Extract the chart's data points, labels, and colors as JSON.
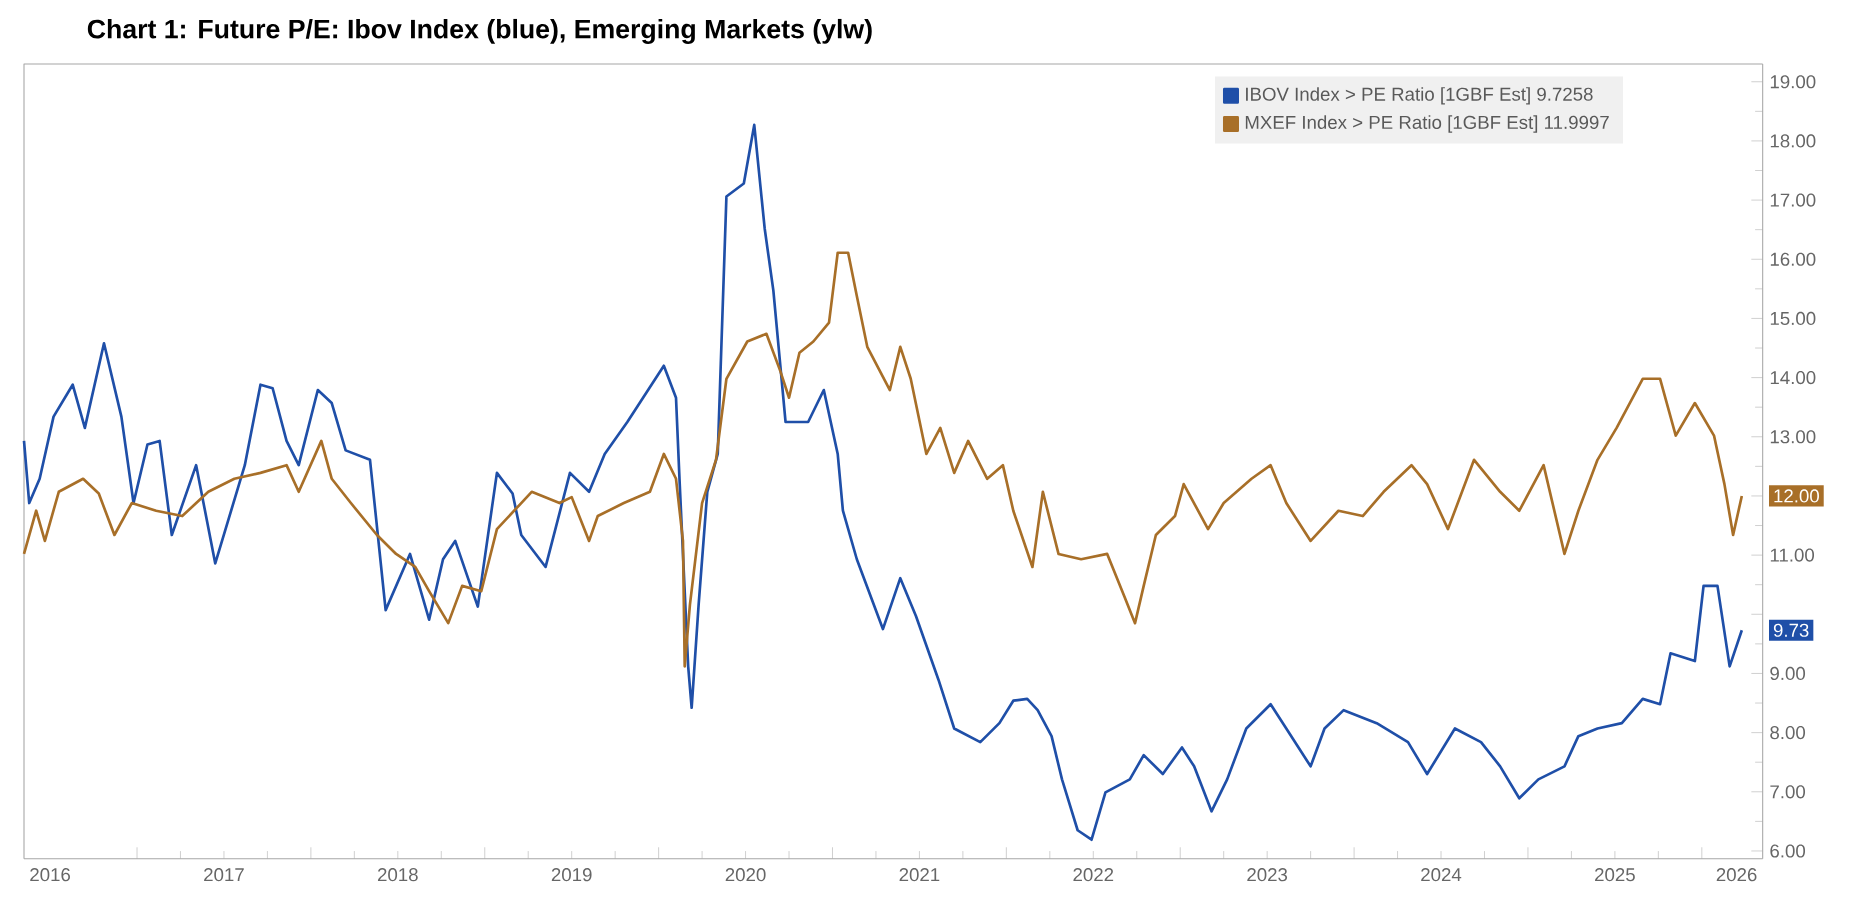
{
  "chart_data": {
    "type": "line",
    "title": "Chart 1: Future P/E: Ibov Index (blue), Emerging Markets (ylw)",
    "xlim": [
      2016.35,
      2026.35
    ],
    "xticks": [
      {
        "value": 2016.5,
        "label": "2016"
      },
      {
        "value": 2017,
        "label": null
      },
      {
        "value": 2017.5,
        "label": "2017"
      },
      {
        "value": 2018,
        "label": null
      },
      {
        "value": 2018.5,
        "label": "2018"
      },
      {
        "value": 2019,
        "label": null
      },
      {
        "value": 2019.5,
        "label": "2019"
      },
      {
        "value": 2020,
        "label": null
      },
      {
        "value": 2020.5,
        "label": "2020"
      },
      {
        "value": 2021,
        "label": null
      },
      {
        "value": 2021.5,
        "label": "2021"
      },
      {
        "value": 2022,
        "label": null
      },
      {
        "value": 2022.5,
        "label": "2022"
      },
      {
        "value": 2023,
        "label": null
      },
      {
        "value": 2023.5,
        "label": "2023"
      },
      {
        "value": 2024,
        "label": null
      },
      {
        "value": 2024.5,
        "label": "2024"
      },
      {
        "value": 2025,
        "label": null
      },
      {
        "value": 2025.5,
        "label": "2025"
      },
      {
        "value": 2026,
        "label": null
      },
      {
        "value": 2026.2,
        "label": "2026"
      }
    ],
    "ylim": [
      5.87,
      19.3
    ],
    "yticks": [
      {
        "value": 6,
        "label": "6.00"
      },
      {
        "value": 7,
        "label": "7.00"
      },
      {
        "value": 8,
        "label": "8.00"
      },
      {
        "value": 9,
        "label": "9.00"
      },
      {
        "value": 10,
        "label": null
      },
      {
        "value": 11,
        "label": "11.00"
      },
      {
        "value": 12,
        "label": null
      },
      {
        "value": 13,
        "label": "13.00"
      },
      {
        "value": 14,
        "label": "14.00"
      },
      {
        "value": 15,
        "label": "15.00"
      },
      {
        "value": 16,
        "label": "16.00"
      },
      {
        "value": 17,
        "label": "17.00"
      },
      {
        "value": 18,
        "label": "18.00"
      },
      {
        "value": 19,
        "label": "19.00"
      }
    ],
    "grid": false,
    "legend": "top right",
    "series": [
      {
        "name": "IBOV Index > PE Ratio [1GBF Est]   9.7258",
        "color": "#1f4fa8",
        "x": [
          2016.35,
          2016.38,
          2016.44,
          2016.52,
          2016.63,
          2016.7,
          2016.81,
          2016.91,
          2016.98,
          2017.06,
          2017.13,
          2017.2,
          2017.34,
          2017.45,
          2017.62,
          2017.71,
          2017.78,
          2017.86,
          2017.93,
          2018.04,
          2018.12,
          2018.2,
          2018.34,
          2018.43,
          2018.57,
          2018.68,
          2018.76,
          2018.83,
          2018.96,
          2019.07,
          2019.16,
          2019.21,
          2019.35,
          2019.49,
          2019.6,
          2019.69,
          2019.82,
          2020.03,
          2020.1,
          2020.12,
          2020.17,
          2020.19,
          2020.23,
          2020.28,
          2020.34,
          2020.39,
          2020.49,
          2020.55,
          2020.61,
          2020.66,
          2020.73,
          2020.86,
          2020.95,
          2021.03,
          2021.06,
          2021.14,
          2021.29,
          2021.39,
          2021.48,
          2021.61,
          2021.7,
          2021.85,
          2021.96,
          2022.04,
          2022.12,
          2022.18,
          2022.26,
          2022.32,
          2022.41,
          2022.49,
          2022.57,
          2022.71,
          2022.79,
          2022.9,
          2023.01,
          2023.08,
          2023.18,
          2023.27,
          2023.38,
          2023.52,
          2023.61,
          2023.75,
          2023.83,
          2023.94,
          2024.13,
          2024.31,
          2024.42,
          2024.58,
          2024.73,
          2024.84,
          2024.95,
          2025.06,
          2025.21,
          2025.29,
          2025.4,
          2025.54,
          2025.66,
          2025.76,
          2025.82,
          2025.96,
          2026.01,
          2026.09,
          2026.16,
          2026.23
        ],
        "values": [
          12.93,
          11.88,
          12.29,
          13.34,
          13.88,
          13.15,
          14.58,
          13.34,
          11.88,
          12.87,
          12.93,
          11.34,
          12.52,
          10.86,
          12.52,
          13.88,
          13.82,
          12.93,
          12.52,
          13.79,
          13.57,
          12.77,
          12.61,
          10.07,
          11.02,
          9.91,
          10.93,
          11.24,
          10.13,
          12.39,
          12.04,
          11.34,
          10.8,
          12.39,
          12.07,
          12.71,
          13.25,
          14.2,
          13.66,
          12.29,
          9.12,
          8.42,
          10.16,
          12.07,
          12.71,
          17.06,
          17.28,
          18.27,
          16.52,
          15.47,
          13.25,
          13.25,
          13.79,
          12.71,
          11.75,
          10.93,
          9.75,
          10.61,
          9.97,
          8.89,
          8.07,
          7.84,
          8.16,
          8.54,
          8.57,
          8.38,
          7.94,
          7.21,
          6.35,
          6.19,
          6.99,
          7.21,
          7.62,
          7.3,
          7.75,
          7.43,
          6.67,
          7.21,
          8.07,
          8.48,
          8.07,
          7.43,
          8.07,
          8.38,
          8.16,
          7.84,
          7.3,
          8.07,
          7.84,
          7.43,
          6.89,
          7.21,
          7.43,
          7.94,
          8.07,
          8.16,
          8.57,
          8.48,
          9.34,
          9.21,
          10.48,
          10.48,
          9.12,
          9.73
        ]
      },
      {
        "name": "MXEF Index > PE Ratio [1GBF Est] 11.9997",
        "color": "#a86f28",
        "x": [
          2016.35,
          2016.42,
          2016.47,
          2016.55,
          2016.69,
          2016.78,
          2016.87,
          2016.97,
          2017.11,
          2017.26,
          2017.41,
          2017.56,
          2017.71,
          2017.86,
          2017.93,
          2018.06,
          2018.12,
          2018.23,
          2018.38,
          2018.49,
          2018.6,
          2018.68,
          2018.79,
          2018.87,
          2018.98,
          2019.07,
          2019.21,
          2019.27,
          2019.43,
          2019.5,
          2019.6,
          2019.65,
          2019.8,
          2019.95,
          2020.03,
          2020.1,
          2020.14,
          2020.15,
          2020.18,
          2020.25,
          2020.33,
          2020.39,
          2020.51,
          2020.62,
          2020.7,
          2020.75,
          2020.81,
          2020.89,
          2020.98,
          2021.03,
          2021.09,
          2021.14,
          2021.2,
          2021.33,
          2021.39,
          2021.45,
          2021.54,
          2021.62,
          2021.7,
          2021.78,
          2021.89,
          2021.98,
          2022.04,
          2022.15,
          2022.21,
          2022.3,
          2022.43,
          2022.58,
          2022.68,
          2022.74,
          2022.79,
          2022.86,
          2022.97,
          2023.02,
          2023.16,
          2023.25,
          2023.41,
          2023.52,
          2023.61,
          2023.75,
          2023.91,
          2024.05,
          2024.17,
          2024.33,
          2024.42,
          2024.54,
          2024.69,
          2024.84,
          2024.95,
          2025.09,
          2025.21,
          2025.29,
          2025.4,
          2025.51,
          2025.66,
          2025.76,
          2025.85,
          2025.96,
          2026.07,
          2026.13,
          2026.18,
          2026.23
        ],
        "values": [
          11.02,
          11.75,
          11.24,
          12.07,
          12.29,
          12.04,
          11.34,
          11.88,
          11.75,
          11.66,
          12.07,
          12.29,
          12.39,
          12.52,
          12.07,
          12.93,
          12.29,
          11.88,
          11.34,
          11.02,
          10.8,
          10.39,
          9.85,
          10.48,
          10.39,
          11.44,
          11.88,
          12.07,
          11.88,
          11.98,
          11.24,
          11.66,
          11.88,
          12.07,
          12.71,
          12.29,
          11.24,
          9.12,
          10.16,
          11.88,
          12.61,
          13.98,
          14.61,
          14.74,
          14.11,
          13.66,
          14.42,
          14.61,
          14.93,
          16.11,
          16.11,
          15.38,
          14.52,
          13.79,
          14.52,
          13.98,
          12.71,
          13.15,
          12.39,
          12.93,
          12.29,
          12.52,
          11.75,
          10.8,
          12.07,
          11.02,
          10.93,
          11.02,
          10.29,
          9.85,
          10.48,
          11.34,
          11.66,
          12.2,
          11.44,
          11.88,
          12.29,
          12.52,
          11.88,
          11.24,
          11.75,
          11.66,
          12.07,
          12.52,
          12.2,
          11.44,
          12.61,
          12.07,
          11.75,
          12.52,
          11.02,
          11.75,
          12.61,
          13.15,
          13.98,
          13.98,
          13.02,
          13.57,
          13.02,
          12.2,
          11.34,
          12.0
        ]
      }
    ],
    "annotations": [
      {
        "text": "12.00",
        "x": 2026.23,
        "y": 12.0
      },
      {
        "text": "9.73",
        "x": 2026.23,
        "y": 9.73
      }
    ]
  }
}
